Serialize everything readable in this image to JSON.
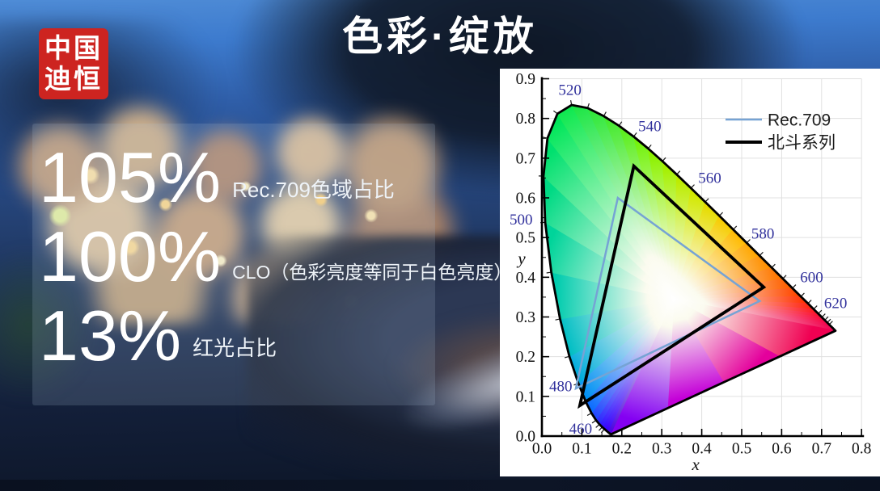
{
  "logo": {
    "line1": "中国",
    "line2": "迪恒",
    "bg_color": "#cd2420"
  },
  "title": {
    "text": "色彩·绽放"
  },
  "stats": [
    {
      "value": "105%",
      "label": "Rec.709色域占比"
    },
    {
      "value": "100%",
      "label": "CLO（色彩亮度等同于白色亮度）"
    },
    {
      "value": "13%",
      "label": "红光占比"
    }
  ],
  "chart_data": {
    "type": "scatter",
    "subtype": "CIE-1931-chromaticity",
    "xlabel": "x",
    "ylabel": "y",
    "xlim": [
      0,
      0.8
    ],
    "ylim": [
      0,
      0.9
    ],
    "grid": true,
    "x_tick_labels": [
      "0.0",
      "0.1",
      "0.2",
      "0.3",
      "0.4",
      "0.5",
      "0.6",
      "0.7",
      "0.8"
    ],
    "y_tick_labels": [
      "0.0",
      "0.1",
      "0.2",
      "0.3",
      "0.4",
      "0.5",
      "0.6",
      "0.7",
      "0.8",
      "0.9"
    ],
    "legend": [
      {
        "name": "Rec.709",
        "color": "#76a3d4",
        "width": 2.5
      },
      {
        "name": "北斗系列",
        "color": "#000000",
        "width": 4
      }
    ],
    "series": [
      {
        "name": "Rec.709",
        "vertices": [
          [
            0.19,
            0.6
          ],
          [
            0.545,
            0.34
          ],
          [
            0.085,
            0.12
          ]
        ]
      },
      {
        "name": "北斗系列",
        "vertices": [
          [
            0.23,
            0.68
          ],
          [
            0.555,
            0.375
          ],
          [
            0.095,
            0.077
          ]
        ]
      }
    ],
    "white_point": [
      0.33,
      0.345
    ],
    "wavelength_labels": [
      {
        "wl": "460",
        "x": 0.097,
        "y": 0.018
      },
      {
        "wl": "480",
        "x": 0.047,
        "y": 0.125
      },
      {
        "wl": "500",
        "x": -0.052,
        "y": 0.545
      },
      {
        "wl": "520",
        "x": 0.07,
        "y": 0.872
      },
      {
        "wl": "540",
        "x": 0.27,
        "y": 0.78
      },
      {
        "wl": "560",
        "x": 0.42,
        "y": 0.65
      },
      {
        "wl": "580",
        "x": 0.553,
        "y": 0.51
      },
      {
        "wl": "600",
        "x": 0.675,
        "y": 0.4
      },
      {
        "wl": "620",
        "x": 0.735,
        "y": 0.335
      }
    ],
    "locus": [
      [
        380,
        0.1741,
        0.005,
        "#5a00b0"
      ],
      [
        420,
        0.1714,
        0.0051,
        "#4600e0"
      ],
      [
        440,
        0.1644,
        0.0109,
        "#3800fa"
      ],
      [
        450,
        0.1566,
        0.0177,
        "#3208ff"
      ],
      [
        455,
        0.151,
        0.0227,
        "#2f14ff"
      ],
      [
        460,
        0.144,
        0.0297,
        "#2a28ff"
      ],
      [
        465,
        0.1355,
        0.0399,
        "#1e46ff"
      ],
      [
        470,
        0.1241,
        0.0578,
        "#0a6cff"
      ],
      [
        475,
        0.1096,
        0.0868,
        "#0090f4"
      ],
      [
        480,
        0.0913,
        0.1327,
        "#00acdc"
      ],
      [
        485,
        0.0687,
        0.2007,
        "#00bec4"
      ],
      [
        490,
        0.0454,
        0.295,
        "#00ccae"
      ],
      [
        495,
        0.0235,
        0.4127,
        "#00d49a"
      ],
      [
        500,
        0.0082,
        0.5384,
        "#00da84"
      ],
      [
        505,
        0.0039,
        0.6548,
        "#00e06e"
      ],
      [
        510,
        0.0139,
        0.7502,
        "#00e65a"
      ],
      [
        515,
        0.0389,
        0.812,
        "#0ce84e"
      ],
      [
        520,
        0.0743,
        0.8338,
        "#1ee646"
      ],
      [
        525,
        0.1142,
        0.8262,
        "#32e83c"
      ],
      [
        530,
        0.1547,
        0.8059,
        "#46ea30"
      ],
      [
        535,
        0.1929,
        0.7816,
        "#5cee20"
      ],
      [
        540,
        0.2296,
        0.7543,
        "#74f20e"
      ],
      [
        545,
        0.2658,
        0.7243,
        "#8cf200"
      ],
      [
        550,
        0.3016,
        0.6923,
        "#a4f000"
      ],
      [
        555,
        0.3373,
        0.6589,
        "#bcec00"
      ],
      [
        560,
        0.3731,
        0.6245,
        "#d2e800"
      ],
      [
        565,
        0.4087,
        0.5896,
        "#e6dc00"
      ],
      [
        570,
        0.4441,
        0.5547,
        "#f6cc00"
      ],
      [
        575,
        0.4788,
        0.5202,
        "#ffba00"
      ],
      [
        580,
        0.5125,
        0.4866,
        "#ffa600"
      ],
      [
        585,
        0.5448,
        0.4544,
        "#ff9000"
      ],
      [
        590,
        0.5752,
        0.4242,
        "#ff7800"
      ],
      [
        595,
        0.6029,
        0.3965,
        "#ff6000"
      ],
      [
        600,
        0.627,
        0.3725,
        "#ff4800"
      ],
      [
        605,
        0.6482,
        0.3514,
        "#ff3404"
      ],
      [
        610,
        0.6658,
        0.334,
        "#ff2410"
      ],
      [
        615,
        0.6801,
        0.3197,
        "#fc1822"
      ],
      [
        620,
        0.6915,
        0.3083,
        "#fa0e30"
      ],
      [
        625,
        0.7006,
        0.2993,
        "#f8083a"
      ],
      [
        630,
        0.7079,
        0.292,
        "#f60442"
      ],
      [
        635,
        0.714,
        0.2859,
        "#f40248"
      ],
      [
        640,
        0.719,
        0.2809,
        "#f2014c"
      ],
      [
        650,
        0.726,
        0.274,
        "#f10050"
      ],
      [
        700,
        0.7347,
        0.2653,
        "#f00052"
      ],
      [
        null,
        0.5946,
        0.2002,
        "#e4009c"
      ],
      [
        null,
        0.4544,
        0.1352,
        "#c400d8"
      ],
      [
        null,
        0.3143,
        0.0701,
        "#8400f2"
      ]
    ],
    "wavelength_label_color": "#31319c"
  }
}
